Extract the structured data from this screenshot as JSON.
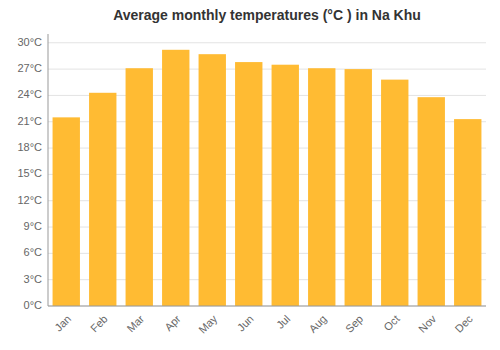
{
  "chart_data": {
    "type": "bar",
    "title": "Average monthly temperatures (°C ) in Na Khu",
    "categories": [
      "Jan",
      "Feb",
      "Mar",
      "Apr",
      "May",
      "Jun",
      "Jul",
      "Aug",
      "Sep",
      "Oct",
      "Nov",
      "Dec"
    ],
    "values": [
      21.5,
      24.3,
      27.1,
      29.2,
      28.7,
      27.8,
      27.5,
      27.1,
      27.0,
      25.8,
      23.8,
      21.3
    ],
    "color": "#FFBB33",
    "ylim": [
      0,
      31
    ],
    "yticks": [
      {
        "value": 0,
        "label": "0°C"
      },
      {
        "value": 3,
        "label": "3°C"
      },
      {
        "value": 6,
        "label": "6°C"
      },
      {
        "value": 9,
        "label": "9°C"
      },
      {
        "value": 12,
        "label": "12°C"
      },
      {
        "value": 15,
        "label": "15°C"
      },
      {
        "value": 18,
        "label": "18°C"
      },
      {
        "value": 21,
        "label": "21°C"
      },
      {
        "value": 24,
        "label": "24°C"
      },
      {
        "value": 27,
        "label": "27°C"
      },
      {
        "value": 30,
        "label": "30°C"
      }
    ],
    "grid": true
  }
}
